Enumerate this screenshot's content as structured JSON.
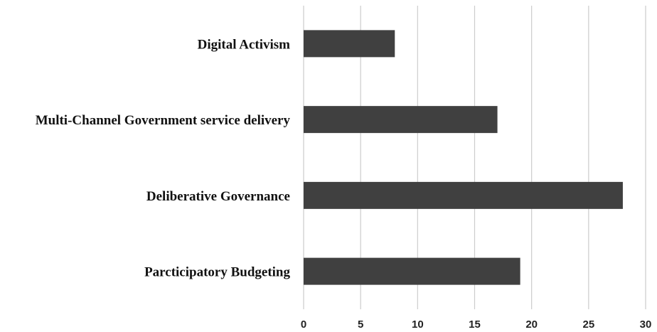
{
  "chart_data": {
    "type": "bar",
    "orientation": "horizontal",
    "title": "",
    "xlabel": "",
    "ylabel": "",
    "categories": [
      "Digital Activism",
      "Multi-Channel Government service delivery",
      "Deliberative Governance",
      "Parcticipatory Budgeting"
    ],
    "values": [
      8,
      17,
      28,
      19
    ],
    "xlim": [
      0,
      30
    ],
    "xticks": [
      0,
      5,
      10,
      15,
      20,
      25,
      30
    ],
    "grid": "vertical",
    "legend": "none",
    "colors": {
      "bar": "#404040",
      "grid": "#cccccc",
      "text": "#111111"
    }
  }
}
